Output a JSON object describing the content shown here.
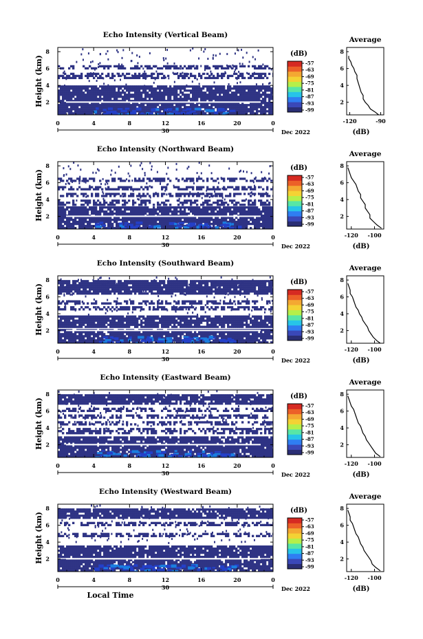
{
  "colors": {
    "background": "#ffffff",
    "echo_fill": "#2e3384",
    "echo_mid": "#2440c8",
    "echo_strong": "#1a7ee0",
    "colormap": [
      "#2a2e74",
      "#3a48b8",
      "#2f7ef2",
      "#27c4e8",
      "#58e6a6",
      "#b6ef4a",
      "#f4d234",
      "#f4a832",
      "#ec6028",
      "#d62a22"
    ]
  },
  "chart_data": [
    {
      "type": "heatmap",
      "title": "Echo Intensity (Vertical Beam)",
      "ylabel": "Height (km)",
      "x_ticks": [
        "0",
        "4",
        "8",
        "12",
        "16",
        "20",
        "0"
      ],
      "y_ticks": [
        "2",
        "4",
        "6",
        "8"
      ],
      "xlim": [
        0,
        24
      ],
      "ylim": [
        0.5,
        8.5
      ],
      "date_day": "30",
      "date_label": "Dec 2022",
      "colorbar": {
        "unit": "(dB)",
        "ticks": [
          "-57",
          "-63",
          "-69",
          "-75",
          "-81",
          "-87",
          "-93",
          "-99"
        ]
      },
      "echo_layers": [
        [
          0.5,
          4.0
        ],
        [
          5.0,
          5.5
        ],
        [
          6.0,
          6.4
        ]
      ],
      "average_profile": {
        "title": "Average",
        "xlabel": "(dB)",
        "x_ticks": [
          "-120",
          "-90"
        ],
        "x_tick_values": [
          -120,
          -90
        ],
        "xlim": [
          -123,
          -87
        ],
        "y_ticks": [
          "2",
          "4",
          "6",
          "8"
        ],
        "ylim": [
          0.5,
          8.5
        ],
        "heights": [
          7.5,
          7.2,
          6.8,
          6.4,
          6.0,
          5.6,
          5.2,
          4.8,
          4.4,
          4.0,
          3.6,
          3.2,
          2.8,
          2.4,
          2.0,
          1.6,
          1.2,
          0.8,
          0.5
        ],
        "values": [
          -121,
          -121,
          -119,
          -118,
          -116,
          -115,
          -113,
          -113,
          -112,
          -111,
          -110,
          -109,
          -107,
          -107,
          -105,
          -102,
          -100,
          -95,
          -92
        ]
      }
    },
    {
      "type": "heatmap",
      "title": "Echo Intensity (Northward Beam)",
      "ylabel": "Height (km)",
      "x_ticks": [
        "0",
        "4",
        "8",
        "12",
        "16",
        "20",
        "0"
      ],
      "y_ticks": [
        "2",
        "4",
        "6",
        "8"
      ],
      "xlim": [
        0,
        24
      ],
      "ylim": [
        0.5,
        8.5
      ],
      "date_day": "30",
      "date_label": "Dec 2022",
      "colorbar": {
        "unit": "(dB)",
        "ticks": [
          "-57",
          "-63",
          "-69",
          "-75",
          "-81",
          "-87",
          "-93",
          "-99"
        ]
      },
      "echo_layers": [
        [
          0.5,
          3.2
        ],
        [
          3.3,
          4.0
        ],
        [
          4.4,
          4.8
        ],
        [
          5.3,
          5.6
        ],
        [
          6.2,
          6.6
        ]
      ],
      "average_profile": {
        "title": "Average",
        "xlabel": "(dB)",
        "x_ticks": [
          "-120",
          "-100"
        ],
        "x_tick_values": [
          -120,
          -100
        ],
        "xlim": [
          -124,
          -92
        ],
        "y_ticks": [
          "2",
          "4",
          "6",
          "8"
        ],
        "ylim": [
          0.5,
          8.5
        ],
        "heights": [
          7.8,
          7.4,
          7.0,
          6.6,
          6.2,
          5.8,
          5.4,
          5.0,
          4.6,
          4.2,
          3.8,
          3.4,
          3.0,
          2.6,
          2.2,
          1.8,
          1.4,
          1.0,
          0.6
        ],
        "values": [
          -123,
          -122,
          -121,
          -120,
          -118,
          -116,
          -115,
          -114,
          -112,
          -112,
          -110,
          -108,
          -108,
          -106,
          -104,
          -104,
          -101,
          -98,
          -94
        ]
      }
    },
    {
      "type": "heatmap",
      "title": "Echo Intensity (Southward Beam)",
      "ylabel": "Height (km)",
      "x_ticks": [
        "0",
        "4",
        "8",
        "12",
        "16",
        "20",
        "0"
      ],
      "y_ticks": [
        "2",
        "4",
        "6",
        "8"
      ],
      "xlim": [
        0,
        24
      ],
      "ylim": [
        0.5,
        8.5
      ],
      "date_day": "30",
      "date_label": "Dec 2022",
      "colorbar": {
        "unit": "(dB)",
        "ticks": [
          "-57",
          "-63",
          "-69",
          "-75",
          "-81",
          "-87",
          "-93",
          "-99"
        ]
      },
      "echo_layers": [
        [
          0.5,
          2.2
        ],
        [
          2.5,
          3.8
        ],
        [
          4.6,
          4.9
        ],
        [
          5.3,
          5.6
        ],
        [
          6.3,
          8.0
        ]
      ],
      "average_profile": {
        "title": "Average",
        "xlabel": "(dB)",
        "x_ticks": [
          "-120",
          "-100"
        ],
        "x_tick_values": [
          -120,
          -100
        ],
        "xlim": [
          -124,
          -92
        ],
        "y_ticks": [
          "2",
          "4",
          "6",
          "8"
        ],
        "ylim": [
          0.5,
          8.5
        ],
        "heights": [
          7.6,
          7.2,
          6.8,
          6.4,
          6.0,
          5.6,
          5.2,
          4.8,
          4.4,
          4.0,
          3.6,
          3.2,
          2.8,
          2.4,
          2.0,
          1.6,
          1.2,
          0.8,
          0.5
        ],
        "values": [
          -123,
          -122,
          -121,
          -121,
          -119,
          -118,
          -117,
          -116,
          -114,
          -113,
          -111,
          -110,
          -108,
          -106,
          -105,
          -103,
          -101,
          -98,
          -95
        ]
      }
    },
    {
      "type": "heatmap",
      "title": "Echo Intensity (Eastward Beam)",
      "ylabel": "Height (km)",
      "x_ticks": [
        "0",
        "4",
        "8",
        "12",
        "16",
        "20",
        "0"
      ],
      "y_ticks": [
        "2",
        "4",
        "6",
        "8"
      ],
      "xlim": [
        0,
        24
      ],
      "ylim": [
        0.5,
        8.5
      ],
      "date_day": "30",
      "date_label": "Dec 2022",
      "colorbar": {
        "unit": "(dB)",
        "ticks": [
          "-57",
          "-63",
          "-69",
          "-75",
          "-81",
          "-87",
          "-93",
          "-99"
        ]
      },
      "echo_layers": [
        [
          0.5,
          3.0
        ],
        [
          3.4,
          4.0
        ],
        [
          4.5,
          4.8
        ],
        [
          5.2,
          5.6
        ],
        [
          6.0,
          6.4
        ],
        [
          6.8,
          8.0
        ]
      ],
      "average_profile": {
        "title": "Average",
        "xlabel": "(dB)",
        "x_ticks": [
          "-120",
          "-100"
        ],
        "x_tick_values": [
          -120,
          -100
        ],
        "xlim": [
          -124,
          -92
        ],
        "y_ticks": [
          "2",
          "4",
          "6",
          "8"
        ],
        "ylim": [
          0.5,
          8.5
        ],
        "heights": [
          7.8,
          7.4,
          7.0,
          6.6,
          6.2,
          5.8,
          5.4,
          5.0,
          4.6,
          4.2,
          3.8,
          3.4,
          3.0,
          2.6,
          2.2,
          1.8,
          1.4,
          1.0,
          0.6
        ],
        "values": [
          -123,
          -122,
          -121,
          -120,
          -118,
          -117,
          -116,
          -115,
          -114,
          -112,
          -111,
          -110,
          -108,
          -107,
          -105,
          -103,
          -101,
          -99,
          -95
        ]
      }
    },
    {
      "type": "heatmap",
      "title": "Echo Intensity (Westward Beam)",
      "ylabel": "Height (km)",
      "x_ticks": [
        "0",
        "4",
        "8",
        "12",
        "16",
        "20",
        "0"
      ],
      "y_ticks": [
        "2",
        "4",
        "6",
        "8"
      ],
      "xlim": [
        0,
        24
      ],
      "ylim": [
        0.5,
        8.5
      ],
      "date_day": "30",
      "date_label": "Dec 2022",
      "xlabel": "Local Time",
      "colorbar": {
        "unit": "(dB)",
        "ticks": [
          "-57",
          "-63",
          "-69",
          "-75",
          "-81",
          "-87",
          "-93",
          "-99"
        ]
      },
      "echo_layers": [
        [
          0.5,
          2.0
        ],
        [
          2.3,
          3.6
        ],
        [
          4.8,
          5.1
        ],
        [
          6.0,
          6.4
        ],
        [
          6.8,
          8.0
        ]
      ],
      "average_profile": {
        "title": "Average",
        "xlabel": "(dB)",
        "x_ticks": [
          "-120",
          "-100"
        ],
        "x_tick_values": [
          -120,
          -100
        ],
        "xlim": [
          -124,
          -92
        ],
        "y_ticks": [
          "2",
          "4",
          "6",
          "8"
        ],
        "ylim": [
          0.5,
          8.5
        ],
        "heights": [
          7.8,
          7.4,
          7.0,
          6.6,
          6.2,
          5.8,
          5.4,
          5.0,
          4.6,
          4.2,
          3.8,
          3.4,
          3.0,
          2.6,
          2.2,
          1.8,
          1.4,
          1.0,
          0.6
        ],
        "values": [
          -123,
          -122,
          -121,
          -121,
          -119,
          -118,
          -117,
          -116,
          -114,
          -113,
          -112,
          -110,
          -109,
          -107,
          -105,
          -103,
          -102,
          -99,
          -95
        ]
      }
    }
  ]
}
